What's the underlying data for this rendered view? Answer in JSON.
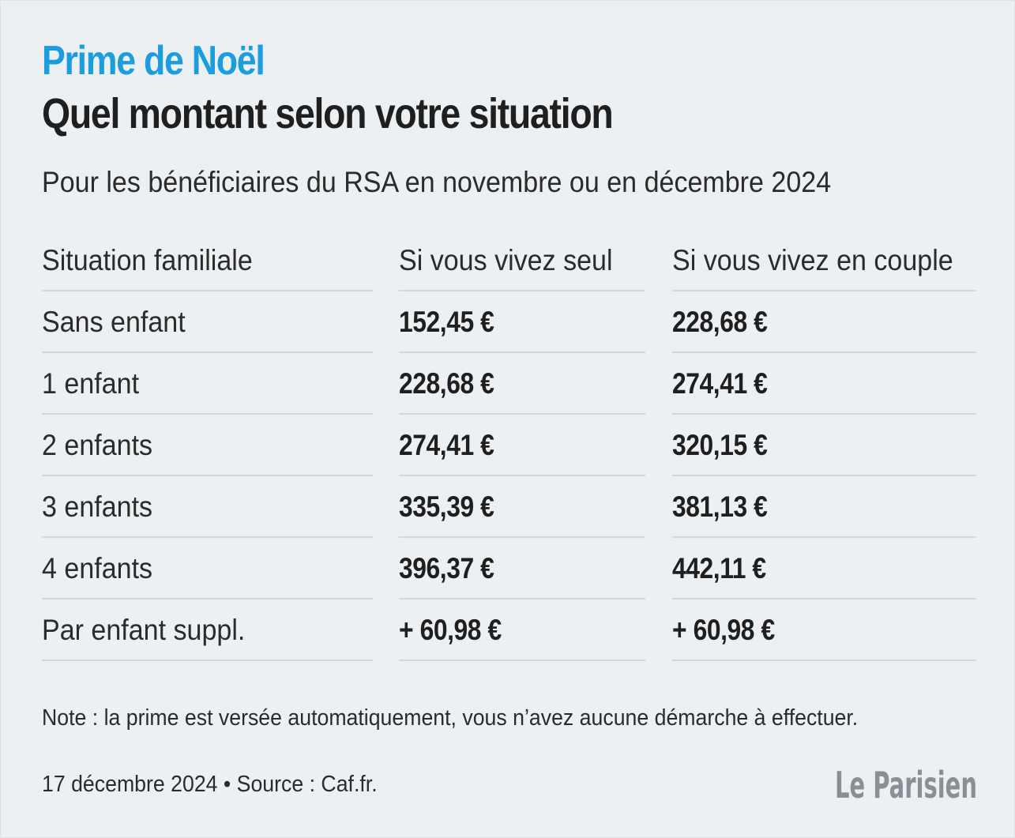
{
  "header": {
    "kicker": "Prime de Noël",
    "title": "Quel montant selon votre situation",
    "subtitle": "Pour les bénéficiaires du RSA en novembre ou en décembre 2024"
  },
  "chart_data": {
    "type": "table",
    "columns": [
      "Situation familiale",
      "Si vous vivez seul",
      "Si vous vivez en couple"
    ],
    "rows": [
      [
        "Sans enfant",
        "152,45 €",
        "228,68 €"
      ],
      [
        "1 enfant",
        "228,68 €",
        "274,41 €"
      ],
      [
        "2 enfants",
        "274,41 €",
        "320,15 €"
      ],
      [
        "3 enfants",
        "335,39 €",
        "381,13 €"
      ],
      [
        "4 enfants",
        "396,37 €",
        "442,11 €"
      ],
      [
        "Par enfant suppl.",
        "+ 60,98 €",
        "+ 60,98 €"
      ]
    ]
  },
  "footer": {
    "note": "Note : la prime est versée automatiquement, vous n’avez aucune démarche à effectuer.",
    "source": "17 décembre 2024 • Source : Caf.fr.",
    "logo_text": "Le Parisien"
  },
  "colors": {
    "accent": "#1c9ddd",
    "background": "#edf0f3",
    "text": "#1f1f1f",
    "divider": "#d3d8dd",
    "logo": "#8a8f95"
  }
}
